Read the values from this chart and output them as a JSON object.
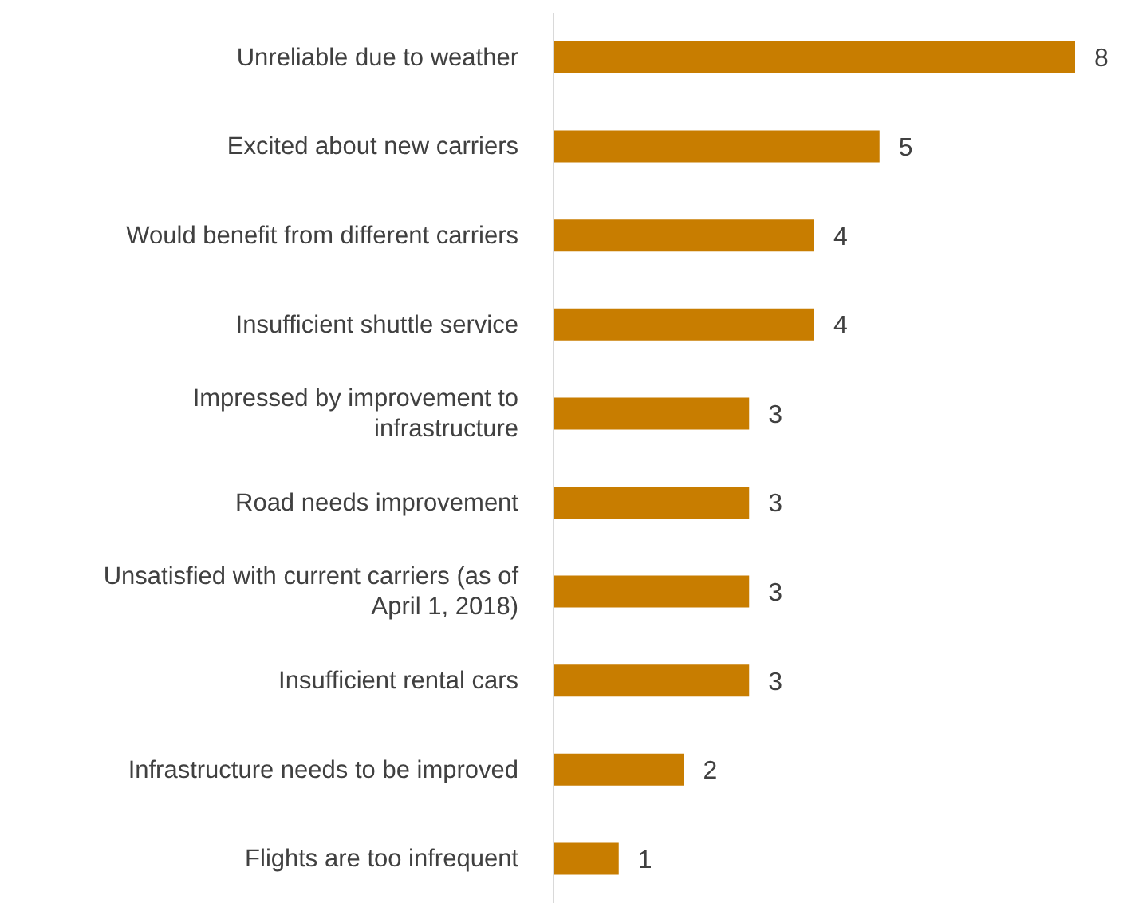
{
  "chart_data": {
    "type": "bar",
    "orientation": "horizontal",
    "categories": [
      "Unreliable due to weather",
      "Excited about new carriers",
      "Would benefit from different carriers",
      "Insufficient shuttle service",
      "Impressed by improvement to infrastructure",
      "Road needs improvement",
      "Unsatisfied with current carriers (as of April 1, 2018)",
      "Insufficient rental cars",
      "Infrastructure needs to be improved",
      "Flights are too infrequent"
    ],
    "values": [
      8,
      5,
      4,
      4,
      3,
      3,
      3,
      3,
      2,
      1
    ],
    "color": "#c87d00",
    "xlim": [
      0,
      8
    ],
    "data_labels": true,
    "tick_labels": "y",
    "grid": false,
    "legend": false
  }
}
